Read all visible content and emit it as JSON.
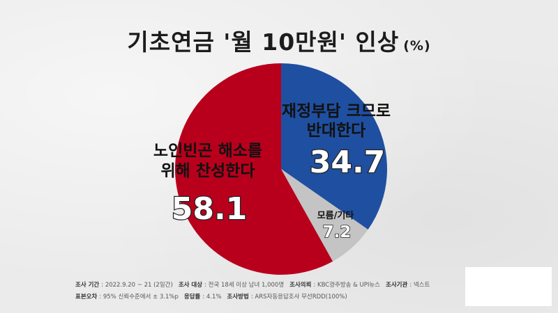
{
  "title": {
    "main": "기초연금 '월 10만원' 인상",
    "unit": "(%)"
  },
  "chart_data": {
    "type": "pie",
    "title": "기초연금 '월 10만원' 인상",
    "unit": "(%)",
    "slices": [
      {
        "label_lines": [
          "재정부담 크므로",
          "반대한다"
        ],
        "value": 34.7,
        "display": "34.7",
        "color": "#1f4fa0"
      },
      {
        "label_lines": [
          "모름/기타"
        ],
        "value": 7.2,
        "display": "7.2",
        "color": "#c4c4c4"
      },
      {
        "label_lines": [
          "노인빈곤 해소를",
          "위해 찬성한다"
        ],
        "value": 58.1,
        "display": "58.1",
        "color": "#b8001c"
      }
    ]
  },
  "footer": {
    "row1": [
      {
        "key": "조사 기간",
        "val": ": 2022.9.20 ~ 21 (2일간)"
      },
      {
        "key": "조사 대상",
        "val": ": 전국 18세 이상 남녀 1,000명"
      },
      {
        "key": "조사의뢰",
        "val": ": KBC광주방송 & UPI뉴스"
      },
      {
        "key": "조사기관",
        "val": ": 넥스트"
      }
    ],
    "row2": [
      {
        "key": "표본오차",
        "val": ": 95% 신뢰수준에서 ± 3.1%p"
      },
      {
        "key": "응답률",
        "val": ": 4.1%"
      },
      {
        "key": "조사방법",
        "val": ": ARS자동응답조사 무선RDD(100%)"
      }
    ]
  }
}
